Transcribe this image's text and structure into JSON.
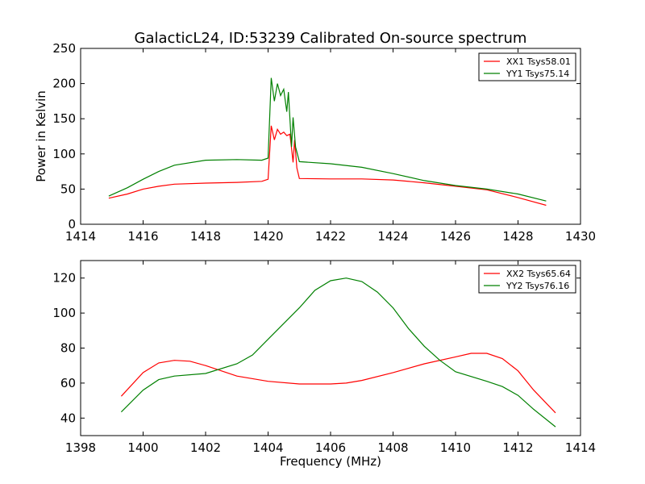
{
  "title": "GalacticL24, ID:53239 Calibrated On-source spectrum",
  "colors": {
    "xx": "#ff0000",
    "yy": "#008000"
  },
  "chart_data": [
    {
      "type": "line",
      "ylabel": "Power in Kelvin",
      "xlabel": "",
      "xlim": [
        1414,
        1430
      ],
      "ylim": [
        0,
        250
      ],
      "xticks": [
        1414,
        1416,
        1418,
        1420,
        1422,
        1424,
        1426,
        1428,
        1430
      ],
      "yticks": [
        0,
        50,
        100,
        150,
        200,
        250
      ],
      "legend_position": "top-right",
      "series": [
        {
          "name": "XX1 Tsys58.01",
          "color": "#ff0000",
          "points": [
            [
              1414.9,
              37
            ],
            [
              1415.5,
              43
            ],
            [
              1416,
              50
            ],
            [
              1416.5,
              54
            ],
            [
              1417,
              57
            ],
            [
              1418,
              58.5
            ],
            [
              1419,
              59.5
            ],
            [
              1419.8,
              61
            ],
            [
              1420.0,
              64
            ],
            [
              1420.1,
              140
            ],
            [
              1420.2,
              120
            ],
            [
              1420.3,
              135
            ],
            [
              1420.4,
              128
            ],
            [
              1420.5,
              131
            ],
            [
              1420.6,
              126
            ],
            [
              1420.7,
              128
            ],
            [
              1420.75,
              108
            ],
            [
              1420.8,
              88
            ],
            [
              1420.85,
              120
            ],
            [
              1420.92,
              80
            ],
            [
              1421.0,
              65
            ],
            [
              1422,
              64.5
            ],
            [
              1423,
              64.5
            ],
            [
              1424,
              63
            ],
            [
              1425,
              59
            ],
            [
              1426,
              54
            ],
            [
              1427,
              49
            ],
            [
              1428,
              38
            ],
            [
              1428.9,
              27
            ]
          ]
        },
        {
          "name": "YY1 Tsys75.14",
          "color": "#008000",
          "points": [
            [
              1414.9,
              40
            ],
            [
              1415.5,
              52
            ],
            [
              1416,
              64
            ],
            [
              1416.5,
              75
            ],
            [
              1417,
              84
            ],
            [
              1418,
              91
            ],
            [
              1419,
              92
            ],
            [
              1419.8,
              91
            ],
            [
              1420.0,
              94
            ],
            [
              1420.1,
              208
            ],
            [
              1420.2,
              175
            ],
            [
              1420.3,
              200
            ],
            [
              1420.4,
              183
            ],
            [
              1420.5,
              192
            ],
            [
              1420.6,
              160
            ],
            [
              1420.65,
              188
            ],
            [
              1420.75,
              110
            ],
            [
              1420.8,
              152
            ],
            [
              1420.88,
              110
            ],
            [
              1421.0,
              89
            ],
            [
              1422,
              86
            ],
            [
              1423,
              81
            ],
            [
              1424,
              72
            ],
            [
              1425,
              62
            ],
            [
              1426,
              55
            ],
            [
              1427,
              50
            ],
            [
              1428,
              43
            ],
            [
              1428.9,
              33
            ]
          ]
        }
      ]
    },
    {
      "type": "line",
      "xlabel": "Frequency (MHz)",
      "ylabel": "",
      "xlim": [
        1398,
        1414
      ],
      "ylim": [
        30,
        130
      ],
      "xticks": [
        1398,
        1400,
        1402,
        1404,
        1406,
        1408,
        1410,
        1412,
        1414
      ],
      "yticks": [
        40,
        60,
        80,
        100,
        120
      ],
      "legend_position": "top-right",
      "series": [
        {
          "name": "XX2 Tsys65.64",
          "color": "#ff0000",
          "points": [
            [
              1399.3,
              52.5
            ],
            [
              1400,
              66
            ],
            [
              1400.5,
              71.5
            ],
            [
              1401,
              73
            ],
            [
              1401.5,
              72.5
            ],
            [
              1402,
              70
            ],
            [
              1402.5,
              67
            ],
            [
              1403,
              64
            ],
            [
              1404,
              61
            ],
            [
              1405,
              59.5
            ],
            [
              1406,
              59.5
            ],
            [
              1406.5,
              60
            ],
            [
              1407,
              61.5
            ],
            [
              1408,
              66
            ],
            [
              1409,
              71
            ],
            [
              1410,
              75
            ],
            [
              1410.5,
              77
            ],
            [
              1411,
              77
            ],
            [
              1411.5,
              74
            ],
            [
              1412,
              67
            ],
            [
              1412.5,
              56
            ],
            [
              1413.2,
              43
            ]
          ]
        },
        {
          "name": "YY2 Tsys76.16",
          "color": "#008000",
          "points": [
            [
              1399.3,
              43.5
            ],
            [
              1400,
              56
            ],
            [
              1400.5,
              62
            ],
            [
              1401,
              64
            ],
            [
              1402,
              65.5
            ],
            [
              1403,
              71
            ],
            [
              1403.5,
              76
            ],
            [
              1404,
              85
            ],
            [
              1405,
              103
            ],
            [
              1405.5,
              113
            ],
            [
              1406,
              118.5
            ],
            [
              1406.5,
              120
            ],
            [
              1407,
              118
            ],
            [
              1407.5,
              112
            ],
            [
              1408,
              103
            ],
            [
              1408.5,
              91
            ],
            [
              1409,
              81
            ],
            [
              1409.5,
              73
            ],
            [
              1410,
              66.5
            ],
            [
              1411,
              61
            ],
            [
              1411.5,
              58
            ],
            [
              1412,
              53
            ],
            [
              1412.5,
              45
            ],
            [
              1413.2,
              35
            ]
          ]
        }
      ]
    }
  ]
}
